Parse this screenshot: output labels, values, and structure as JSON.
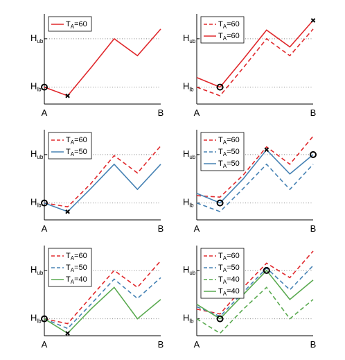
{
  "chart_data": [
    {
      "type": "line",
      "panel": "row1-left",
      "x_ticks": [
        "A",
        "B"
      ],
      "y_ticks": [
        {
          "main": "H",
          "sub": "lb"
        },
        {
          "main": "H",
          "sub": "ub"
        }
      ],
      "x": [
        0,
        1,
        2,
        3,
        4,
        5
      ],
      "xlim": [
        0,
        5
      ],
      "ylim": [
        -0.35,
        1.4
      ],
      "series": [
        {
          "name": "T_A=60",
          "label_main": "T",
          "label_sub": "A",
          "label_rest": "=60",
          "color": "#e0282c",
          "dash": "solid",
          "values": [
            0,
            -0.18,
            0.4,
            1.0,
            0.65,
            1.2
          ]
        }
      ],
      "guides": [
        0,
        1
      ],
      "markers": [
        {
          "kind": "circle",
          "x": 0,
          "y": 0
        },
        {
          "kind": "x",
          "x": 1,
          "y": -0.18
        }
      ]
    },
    {
      "type": "line",
      "panel": "row1-right",
      "x_ticks": [
        "A",
        "B"
      ],
      "y_ticks": [
        {
          "main": "H",
          "sub": "lb"
        },
        {
          "main": "H",
          "sub": "ub"
        }
      ],
      "x": [
        0,
        1,
        2,
        3,
        4,
        5
      ],
      "xlim": [
        0,
        5
      ],
      "ylim": [
        -0.35,
        1.4
      ],
      "series": [
        {
          "name": "T_A=60",
          "label_main": "T",
          "label_sub": "A",
          "label_rest": "=60",
          "color": "#e0282c",
          "dash": "dashed",
          "values": [
            0,
            -0.18,
            0.4,
            1.0,
            0.65,
            1.2
          ]
        },
        {
          "name": "T_A=60",
          "label_main": "T",
          "label_sub": "A",
          "label_rest": "=60",
          "color": "#e0282c",
          "dash": "solid",
          "values": [
            0.2,
            0,
            0.58,
            1.18,
            0.83,
            1.38
          ]
        }
      ],
      "guides": [
        0,
        1
      ],
      "markers": [
        {
          "kind": "circle",
          "x": 1,
          "y": 0
        },
        {
          "kind": "x",
          "x": 5,
          "y": 1.38
        }
      ]
    },
    {
      "type": "line",
      "panel": "row2-left",
      "x_ticks": [
        "A",
        "B"
      ],
      "y_ticks": [
        {
          "main": "H",
          "sub": "lb"
        },
        {
          "main": "H",
          "sub": "ub"
        }
      ],
      "x": [
        0,
        1,
        2,
        3,
        4,
        5
      ],
      "xlim": [
        0,
        5
      ],
      "ylim": [
        -0.35,
        1.4
      ],
      "series": [
        {
          "name": "T_A=60",
          "label_main": "T",
          "label_sub": "A",
          "label_rest": "=60",
          "color": "#e0282c",
          "dash": "dashed",
          "values": [
            0,
            -0.08,
            0.4,
            0.98,
            0.62,
            1.18
          ]
        },
        {
          "name": "T_A=50",
          "label_main": "T",
          "label_sub": "A",
          "label_rest": "=50",
          "color": "#4682b4",
          "dash": "solid",
          "values": [
            0,
            -0.18,
            0.3,
            0.8,
            0.28,
            0.8
          ]
        }
      ],
      "guides": [
        0,
        1
      ],
      "markers": [
        {
          "kind": "circle",
          "x": 0,
          "y": 0
        },
        {
          "kind": "x",
          "x": 1,
          "y": -0.18
        }
      ]
    },
    {
      "type": "line",
      "panel": "row2-right",
      "x_ticks": [
        "A",
        "B"
      ],
      "y_ticks": [
        {
          "main": "H",
          "sub": "lb"
        },
        {
          "main": "H",
          "sub": "ub"
        }
      ],
      "x": [
        0,
        1,
        2,
        3,
        4,
        5
      ],
      "xlim": [
        0,
        5
      ],
      "ylim": [
        -0.35,
        1.4
      ],
      "series": [
        {
          "name": "T_A=60",
          "label_main": "T",
          "label_sub": "A",
          "label_rest": "=60",
          "color": "#e0282c",
          "dash": "dashed",
          "values": [
            0.15,
            0.12,
            0.58,
            1.16,
            0.8,
            1.38
          ]
        },
        {
          "name": "T_A=50",
          "label_main": "T",
          "label_sub": "A",
          "label_rest": "=50",
          "color": "#4682b4",
          "dash": "dashed",
          "values": [
            0,
            -0.18,
            0.3,
            0.8,
            0.28,
            0.8
          ]
        },
        {
          "name": "T_A=50",
          "label_main": "T",
          "label_sub": "A",
          "label_rest": "=50",
          "color": "#4682b4",
          "dash": "solid",
          "values": [
            0.2,
            0,
            0.5,
            1.1,
            0.6,
            1.0
          ]
        }
      ],
      "guides": [
        0,
        1
      ],
      "markers": [
        {
          "kind": "circle",
          "x": 1,
          "y": 0
        },
        {
          "kind": "x",
          "x": 3,
          "y": 1.1
        },
        {
          "kind": "circle",
          "x": 5,
          "y": 1.0
        }
      ]
    },
    {
      "type": "line",
      "panel": "row3-left",
      "x_ticks": [
        "A",
        "B"
      ],
      "y_ticks": [
        {
          "main": "H",
          "sub": "lb"
        },
        {
          "main": "H",
          "sub": "ub"
        }
      ],
      "x": [
        0,
        1,
        2,
        3,
        4,
        5
      ],
      "xlim": [
        0,
        5
      ],
      "ylim": [
        -0.35,
        1.4
      ],
      "series": [
        {
          "name": "T_A=60",
          "label_main": "T",
          "label_sub": "A",
          "label_rest": "=60",
          "color": "#e0282c",
          "dash": "dashed",
          "values": [
            0,
            -0.1,
            0.45,
            1.0,
            0.65,
            1.2
          ]
        },
        {
          "name": "T_A=50",
          "label_main": "T",
          "label_sub": "A",
          "label_rest": "=50",
          "color": "#4682b4",
          "dash": "dashed",
          "values": [
            0,
            -0.2,
            0.3,
            0.82,
            0.42,
            0.85
          ]
        },
        {
          "name": "T_A=40",
          "label_main": "T",
          "label_sub": "A",
          "label_rest": "=40",
          "color": "#5aaa50",
          "dash": "solid",
          "values": [
            0,
            -0.3,
            0.2,
            0.65,
            0.0,
            0.4
          ]
        }
      ],
      "guides": [
        0,
        1
      ],
      "markers": [
        {
          "kind": "circle",
          "x": 0,
          "y": 0
        },
        {
          "kind": "x",
          "x": 1,
          "y": -0.3
        }
      ]
    },
    {
      "type": "line",
      "panel": "row3-right",
      "x_ticks": [
        "A",
        "B"
      ],
      "y_ticks": [
        {
          "main": "H",
          "sub": "lb"
        },
        {
          "main": "H",
          "sub": "ub"
        }
      ],
      "x": [
        0,
        1,
        2,
        3,
        4,
        5
      ],
      "xlim": [
        0,
        5
      ],
      "ylim": [
        -0.35,
        1.4
      ],
      "series": [
        {
          "name": "T_A=60",
          "label_main": "T",
          "label_sub": "A",
          "label_rest": "=60",
          "color": "#e0282c",
          "dash": "dashed",
          "values": [
            0.2,
            0.1,
            0.65,
            1.15,
            0.85,
            1.4
          ]
        },
        {
          "name": "T_A=50",
          "label_main": "T",
          "label_sub": "A",
          "label_rest": "=50",
          "color": "#4682b4",
          "dash": "dashed",
          "values": [
            0.25,
            0.05,
            0.55,
            1.05,
            0.6,
            1.1
          ]
        },
        {
          "name": "T_A=40",
          "label_main": "T",
          "label_sub": "A",
          "label_rest": "=40",
          "color": "#5aaa50",
          "dash": "dashed",
          "values": [
            0,
            -0.3,
            0.2,
            0.65,
            0.0,
            0.4
          ]
        },
        {
          "name": "T_A=40",
          "label_main": "T",
          "label_sub": "A",
          "label_rest": "=40",
          "color": "#5aaa50",
          "dash": "solid",
          "values": [
            0.3,
            0,
            0.5,
            1.0,
            0.4,
            0.8
          ]
        }
      ],
      "guides": [
        0,
        1
      ],
      "markers": [
        {
          "kind": "circle",
          "x": 1,
          "y": 0
        },
        {
          "kind": "circle",
          "x": 3,
          "y": 1.0
        }
      ]
    }
  ]
}
